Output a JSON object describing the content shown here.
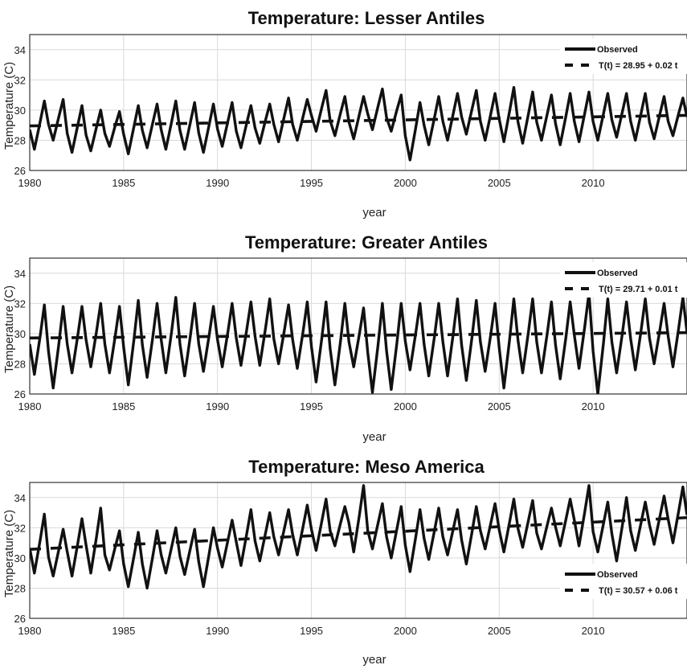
{
  "chart_data": [
    {
      "type": "line",
      "title": "Temperature: Lesser Antiles",
      "xlabel": "year",
      "ylabel": "Temperature (C)",
      "xlim": [
        1980,
        2015
      ],
      "ylim": [
        26,
        35
      ],
      "xticks": [
        "1980",
        "1985",
        "1990",
        "1995",
        "2000",
        "2005",
        "2010"
      ],
      "yticks": [
        "26",
        "28",
        "30",
        "32",
        "34"
      ],
      "grid": true,
      "legend_position": "top-right",
      "series": [
        {
          "name": "Observed",
          "style": "solid",
          "x": [
            1980,
            1981,
            1982,
            1983,
            1984,
            1985,
            1986,
            1987,
            1988,
            1989,
            1990,
            1991,
            1992,
            1993,
            1994,
            1995,
            1996,
            1997,
            1998,
            1999,
            2000,
            2001,
            2002,
            2003,
            2004,
            2005,
            2006,
            2007,
            2008,
            2009,
            2010,
            2011,
            2012,
            2013,
            2014
          ],
          "peak": [
            30.6,
            30.7,
            30.3,
            30.0,
            29.9,
            30.3,
            30.4,
            30.6,
            30.5,
            30.4,
            30.5,
            30.3,
            30.4,
            30.8,
            30.7,
            31.3,
            30.9,
            30.9,
            31.4,
            31.0,
            30.5,
            30.9,
            31.1,
            31.3,
            31.1,
            31.5,
            31.2,
            31.0,
            31.1,
            31.2,
            31.1,
            31.1,
            31.1,
            30.9,
            30.8
          ],
          "trough": [
            27.4,
            28.0,
            27.2,
            27.3,
            27.6,
            27.1,
            27.5,
            27.4,
            27.4,
            27.2,
            27.6,
            27.5,
            27.8,
            27.9,
            28.0,
            28.6,
            28.3,
            28.1,
            28.7,
            28.6,
            26.7,
            27.7,
            28.0,
            28.4,
            28.0,
            27.9,
            27.8,
            28.0,
            27.7,
            27.9,
            28.0,
            28.2,
            28.0,
            28.1,
            28.3
          ]
        },
        {
          "name": "T(t) = 28.95 + 0.02 t",
          "style": "dashed",
          "intercept": 28.95,
          "slope": 0.02
        }
      ]
    },
    {
      "type": "line",
      "title": "Temperature: Greater Antiles",
      "xlabel": "year",
      "ylabel": "Temperature (C)",
      "xlim": [
        1980,
        2015
      ],
      "ylim": [
        26,
        35
      ],
      "xticks": [
        "1980",
        "1985",
        "1990",
        "1995",
        "2000",
        "2005",
        "2010"
      ],
      "yticks": [
        "26",
        "28",
        "30",
        "32",
        "34"
      ],
      "grid": true,
      "legend_position": "top-right",
      "series": [
        {
          "name": "Observed",
          "style": "solid",
          "x": [
            1980,
            1981,
            1982,
            1983,
            1984,
            1985,
            1986,
            1987,
            1988,
            1989,
            1990,
            1991,
            1992,
            1993,
            1994,
            1995,
            1996,
            1997,
            1998,
            1999,
            2000,
            2001,
            2002,
            2003,
            2004,
            2005,
            2006,
            2007,
            2008,
            2009,
            2010,
            2011,
            2012,
            2013,
            2014
          ],
          "peak": [
            31.9,
            31.8,
            31.8,
            32.0,
            31.8,
            32.2,
            32.0,
            32.4,
            32.0,
            31.8,
            32.0,
            32.1,
            32.3,
            31.9,
            32.1,
            32.1,
            32.0,
            31.7,
            32.0,
            32.0,
            32.0,
            32.0,
            32.3,
            32.2,
            32.0,
            32.3,
            32.3,
            32.1,
            32.1,
            32.7,
            32.3,
            32.1,
            32.3,
            32.0,
            32.4
          ],
          "trough": [
            27.3,
            26.4,
            27.4,
            27.8,
            27.4,
            26.6,
            27.1,
            27.4,
            27.2,
            27.5,
            27.8,
            27.9,
            27.9,
            28.0,
            27.7,
            26.8,
            26.6,
            27.8,
            26.1,
            26.3,
            27.6,
            27.2,
            27.2,
            26.9,
            27.5,
            26.4,
            27.4,
            27.4,
            27.0,
            27.7,
            26.0,
            27.4,
            27.6,
            28.0,
            27.8
          ]
        },
        {
          "name": "T(t) = 29.71 + 0.01 t",
          "style": "dashed",
          "intercept": 29.71,
          "slope": 0.01
        }
      ]
    },
    {
      "type": "line",
      "title": "Temperature: Meso America",
      "xlabel": "year",
      "ylabel": "Temperature (C)",
      "xlim": [
        1980,
        2015
      ],
      "ylim": [
        26,
        35
      ],
      "xticks": [
        "1980",
        "1985",
        "1990",
        "1995",
        "2000",
        "2005",
        "2010"
      ],
      "yticks": [
        "26",
        "28",
        "30",
        "32",
        "34"
      ],
      "grid": true,
      "legend_position": "bottom-right",
      "series": [
        {
          "name": "Observed",
          "style": "solid",
          "x": [
            1980,
            1981,
            1982,
            1983,
            1984,
            1985,
            1986,
            1987,
            1988,
            1989,
            1990,
            1991,
            1992,
            1993,
            1994,
            1995,
            1996,
            1997,
            1998,
            1999,
            2000,
            2001,
            2002,
            2003,
            2004,
            2005,
            2006,
            2007,
            2008,
            2009,
            2010,
            2011,
            2012,
            2013,
            2014
          ],
          "peak": [
            32.9,
            31.9,
            32.6,
            33.3,
            31.8,
            31.7,
            31.8,
            32.0,
            31.9,
            32.0,
            32.5,
            33.2,
            33.0,
            33.2,
            33.5,
            33.9,
            33.4,
            34.8,
            33.6,
            33.4,
            33.2,
            33.3,
            33.2,
            33.4,
            33.6,
            33.9,
            33.8,
            33.3,
            33.9,
            34.8,
            33.7,
            34.0,
            33.7,
            34.1,
            34.7
          ],
          "trough": [
            29.0,
            28.8,
            28.8,
            29.0,
            29.2,
            28.1,
            28.0,
            29.0,
            28.9,
            28.1,
            29.4,
            29.5,
            29.8,
            30.2,
            30.2,
            30.5,
            30.8,
            30.4,
            30.6,
            30.0,
            29.1,
            29.9,
            30.2,
            29.6,
            30.6,
            30.4,
            30.7,
            30.6,
            30.8,
            30.8,
            30.4,
            29.8,
            30.5,
            30.9,
            31.0
          ]
        },
        {
          "name": "T(t) = 30.57 + 0.06 t",
          "style": "dashed",
          "intercept": 30.57,
          "slope": 0.06
        }
      ]
    }
  ]
}
